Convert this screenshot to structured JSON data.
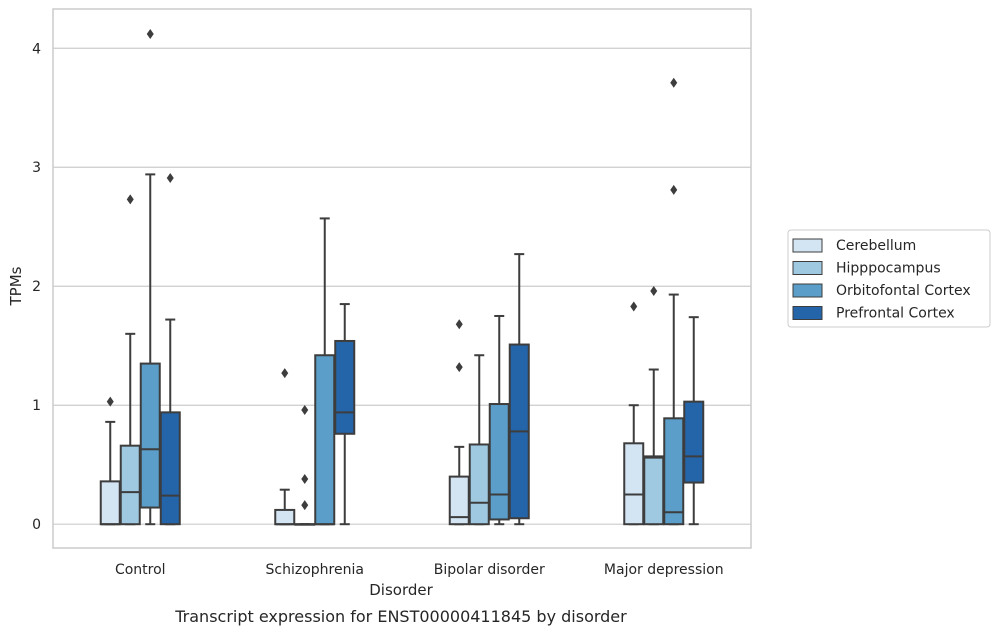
{
  "chart_data": {
    "type": "box",
    "caption": "Transcript expression for ENST00000411845 by disorder",
    "xlabel": "Disorder",
    "ylabel": "TPMs",
    "ylim": [
      -0.2,
      4.33
    ],
    "yticks": [
      0,
      1,
      2,
      3,
      4
    ],
    "ytick_labels": [
      "0",
      "1",
      "2",
      "3",
      "4"
    ],
    "grid": true,
    "legend_placement": "center-right, outside plot",
    "categories": [
      "Control",
      "Schizophrenia",
      "Bipolar disorder",
      "Major depression"
    ],
    "series": [
      {
        "name": "Cerebellum",
        "color": "#d3e4f3",
        "boxes": [
          {
            "whisker_low": 0,
            "q1": 0,
            "median": 0,
            "q3": 0.36,
            "whisker_high": 0.86,
            "outliers": [
              1.03
            ]
          },
          {
            "whisker_low": 0,
            "q1": 0,
            "median": 0,
            "q3": 0.12,
            "whisker_high": 0.29,
            "outliers": [
              1.27
            ]
          },
          {
            "whisker_low": 0,
            "q1": 0,
            "median": 0.06,
            "q3": 0.4,
            "whisker_high": 0.65,
            "outliers": [
              1.32,
              1.68
            ]
          },
          {
            "whisker_low": 0,
            "q1": 0,
            "median": 0.25,
            "q3": 0.68,
            "whisker_high": 1.0,
            "outliers": [
              1.83
            ]
          }
        ]
      },
      {
        "name": "Hipppocampus",
        "color": "#9ec9e1",
        "boxes": [
          {
            "whisker_low": 0,
            "q1": 0,
            "median": 0.27,
            "q3": 0.66,
            "whisker_high": 1.6,
            "outliers": [
              2.73
            ]
          },
          {
            "whisker_low": 0,
            "q1": 0,
            "median": 0,
            "q3": 0,
            "whisker_high": 0,
            "outliers": [
              0.16,
              0.38,
              0.96
            ]
          },
          {
            "whisker_low": 0,
            "q1": 0,
            "median": 0.18,
            "q3": 0.67,
            "whisker_high": 1.42,
            "outliers": []
          },
          {
            "whisker_low": 0,
            "q1": 0,
            "median": 0.56,
            "q3": 0.57,
            "whisker_high": 1.3,
            "outliers": [
              1.96
            ]
          }
        ]
      },
      {
        "name": "Orbitofontal Cortex",
        "color": "#5a9ec9",
        "boxes": [
          {
            "whisker_low": 0,
            "q1": 0.14,
            "median": 0.63,
            "q3": 1.35,
            "whisker_high": 2.94,
            "outliers": [
              4.12
            ]
          },
          {
            "whisker_low": 0,
            "q1": 0,
            "median": 0,
            "q3": 1.42,
            "whisker_high": 2.57,
            "outliers": []
          },
          {
            "whisker_low": 0,
            "q1": 0.04,
            "median": 0.25,
            "q3": 1.01,
            "whisker_high": 1.75,
            "outliers": []
          },
          {
            "whisker_low": 0,
            "q1": 0,
            "median": 0.1,
            "q3": 0.89,
            "whisker_high": 1.93,
            "outliers": [
              2.81,
              3.71
            ]
          }
        ]
      },
      {
        "name": "Prefrontal Cortex",
        "color": "#2464a9",
        "boxes": [
          {
            "whisker_low": 0,
            "q1": 0,
            "median": 0.24,
            "q3": 0.94,
            "whisker_high": 1.72,
            "outliers": [
              2.91
            ]
          },
          {
            "whisker_low": 0,
            "q1": 0.76,
            "median": 0.94,
            "q3": 1.54,
            "whisker_high": 1.85,
            "outliers": []
          },
          {
            "whisker_low": 0,
            "q1": 0.05,
            "median": 0.78,
            "q3": 1.51,
            "whisker_high": 2.27,
            "outliers": []
          },
          {
            "whisker_low": 0,
            "q1": 0.35,
            "median": 0.57,
            "q3": 1.03,
            "whisker_high": 1.74,
            "outliers": []
          }
        ]
      }
    ]
  }
}
